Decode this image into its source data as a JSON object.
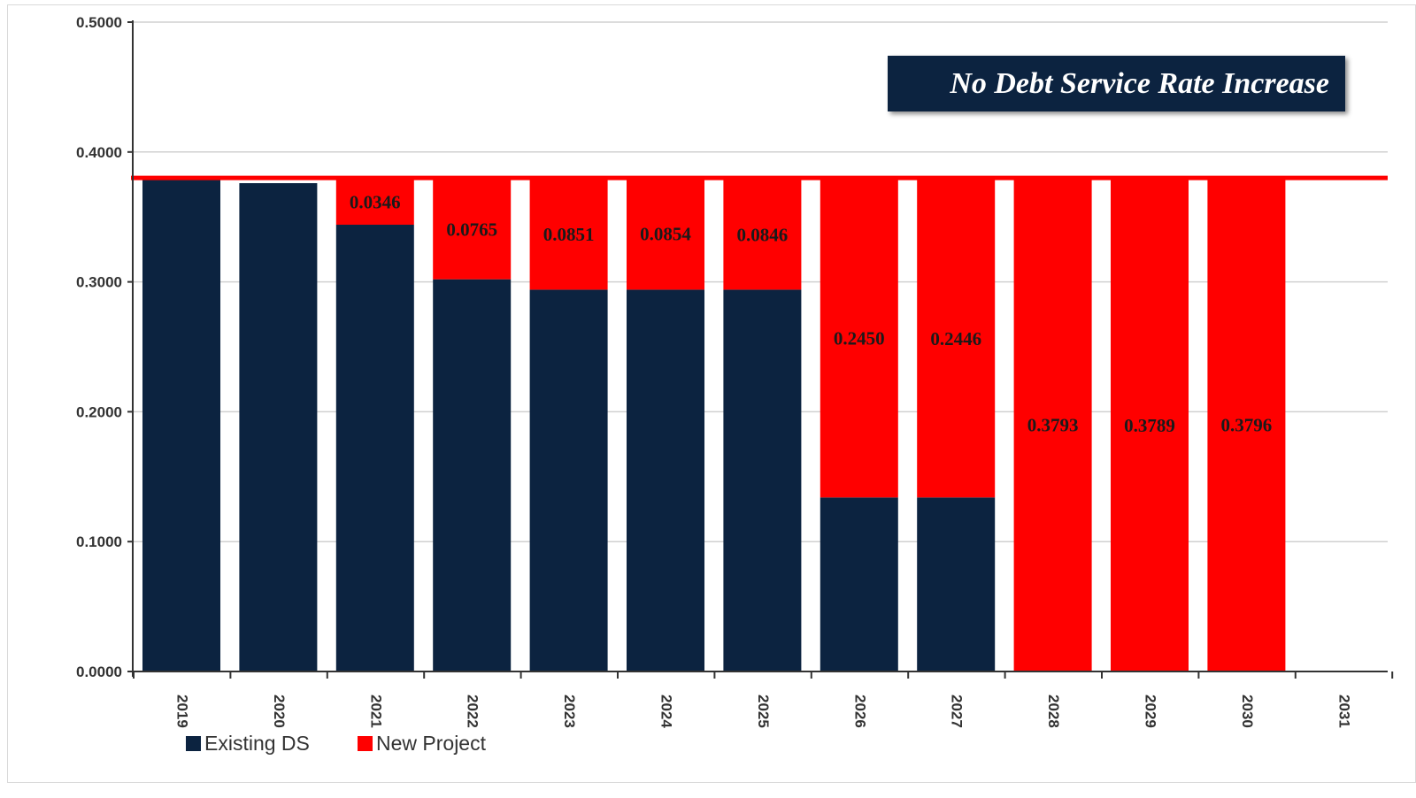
{
  "chart_data": {
    "type": "bar",
    "stacked": true,
    "title": "No Debt Service Rate Increase",
    "categories": [
      "2019",
      "2020",
      "2021",
      "2022",
      "2023",
      "2024",
      "2025",
      "2026",
      "2027",
      "2028",
      "2029",
      "2030",
      "2031"
    ],
    "y_tick_labels": [
      "0.0000",
      "0.1000",
      "0.2000",
      "0.3000",
      "0.4000",
      "0.5000"
    ],
    "ylim": [
      0,
      0.5
    ],
    "grid": true,
    "series": [
      {
        "name": "Existing DS",
        "color": "#0c2340",
        "values": [
          0.38,
          0.376,
          0.344,
          0.302,
          0.294,
          0.294,
          0.294,
          0.134,
          0.134,
          0,
          0,
          0,
          0
        ]
      },
      {
        "name": "New Project",
        "color": "#ff0000",
        "values": [
          0,
          0,
          0.0346,
          0.0765,
          0.0851,
          0.0854,
          0.0846,
          0.245,
          0.2446,
          0.3793,
          0.3789,
          0.3796,
          0
        ],
        "data_labels": [
          "",
          "",
          "0.0346",
          "0.0765",
          "0.0851",
          "0.0854",
          "0.0846",
          "0.2450",
          "0.2446",
          "0.3793",
          "0.3789",
          "0.3796",
          ""
        ]
      }
    ],
    "reference_line": {
      "value": 0.38,
      "color": "#ff0000"
    },
    "legend": {
      "position": "bottom-left"
    }
  }
}
